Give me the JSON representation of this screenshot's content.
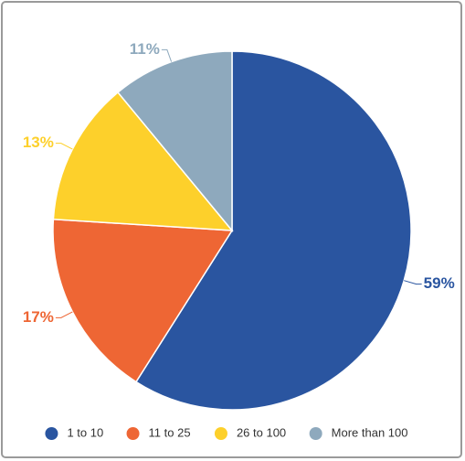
{
  "chart_data": {
    "type": "pie",
    "categories": [
      "1 to 10",
      "11 to 25",
      "26 to 100",
      "More than 100"
    ],
    "values": [
      59,
      17,
      13,
      11
    ],
    "value_labels": [
      "59%",
      "17%",
      "13%",
      "11%"
    ],
    "colors": [
      "#2a55a0",
      "#ee6634",
      "#fdd02b",
      "#8ea9bd"
    ],
    "legend": "bottom"
  }
}
